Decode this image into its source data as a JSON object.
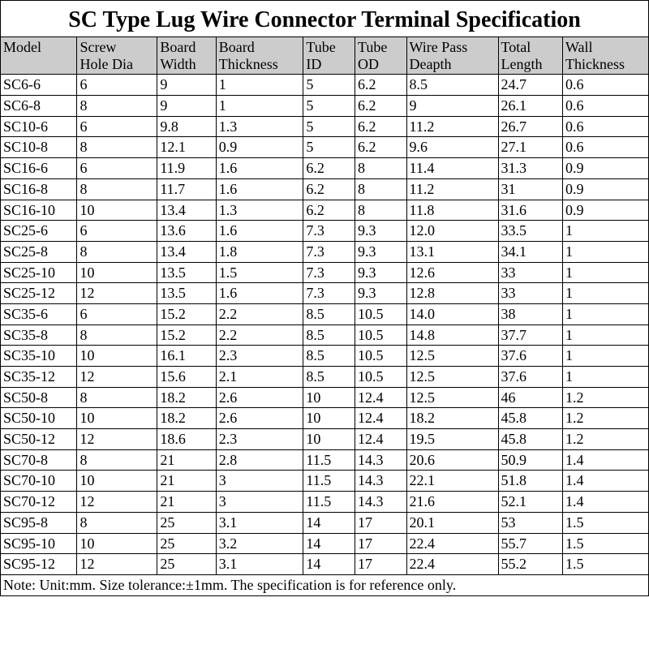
{
  "title": "SC Type Lug Wire Connector Terminal Specification",
  "note": "Note: Unit:mm. Size tolerance:±1mm. The specification is for reference only.",
  "table": {
    "columns": [
      {
        "l1": "Model",
        "l2": ""
      },
      {
        "l1": "Screw",
        "l2": "Hole Dia"
      },
      {
        "l1": "Board",
        "l2": "Width"
      },
      {
        "l1": "Board",
        "l2": "Thickness"
      },
      {
        "l1": "Tube",
        "l2": "ID"
      },
      {
        "l1": "Tube",
        "l2": "OD"
      },
      {
        "l1": "Wire Pass",
        "l2": "Deapth"
      },
      {
        "l1": "Total",
        "l2": "Length"
      },
      {
        "l1": "Wall",
        "l2": "Thickness"
      }
    ],
    "rows": [
      [
        "SC6-6",
        "6",
        "9",
        "1",
        "5",
        "6.2",
        "8.5",
        "24.7",
        "0.6"
      ],
      [
        "SC6-8",
        "8",
        "9",
        "1",
        "5",
        "6.2",
        "9",
        "26.1",
        "0.6"
      ],
      [
        "SC10-6",
        "6",
        "9.8",
        "1.3",
        "5",
        "6.2",
        "11.2",
        "26.7",
        "0.6"
      ],
      [
        "SC10-8",
        "8",
        "12.1",
        "0.9",
        "5",
        "6.2",
        "9.6",
        "27.1",
        "0.6"
      ],
      [
        "SC16-6",
        "6",
        "11.9",
        "1.6",
        "6.2",
        "8",
        "11.4",
        "31.3",
        "0.9"
      ],
      [
        "SC16-8",
        "8",
        "11.7",
        "1.6",
        "6.2",
        "8",
        "11.2",
        "31",
        "0.9"
      ],
      [
        "SC16-10",
        "10",
        "13.4",
        "1.3",
        "6.2",
        "8",
        "11.8",
        "31.6",
        "0.9"
      ],
      [
        "SC25-6",
        "6",
        "13.6",
        "1.6",
        "7.3",
        "9.3",
        "12.0",
        "33.5",
        "1"
      ],
      [
        "SC25-8",
        "8",
        "13.4",
        "1.8",
        "7.3",
        "9.3",
        "13.1",
        "34.1",
        "1"
      ],
      [
        "SC25-10",
        "10",
        "13.5",
        "1.5",
        "7.3",
        "9.3",
        "12.6",
        "33",
        "1"
      ],
      [
        "SC25-12",
        "12",
        "13.5",
        "1.6",
        "7.3",
        "9.3",
        "12.8",
        "33",
        "1"
      ],
      [
        "SC35-6",
        "6",
        "15.2",
        "2.2",
        "8.5",
        "10.5",
        "14.0",
        "38",
        "1"
      ],
      [
        "SC35-8",
        "8",
        "15.2",
        "2.2",
        "8.5",
        "10.5",
        "14.8",
        "37.7",
        "1"
      ],
      [
        "SC35-10",
        "10",
        "16.1",
        "2.3",
        "8.5",
        "10.5",
        "12.5",
        "37.6",
        "1"
      ],
      [
        "SC35-12",
        "12",
        "15.6",
        "2.1",
        "8.5",
        "10.5",
        "12.5",
        "37.6",
        "1"
      ],
      [
        "SC50-8",
        "8",
        "18.2",
        "2.6",
        "10",
        "12.4",
        "12.5",
        "46",
        "1.2"
      ],
      [
        "SC50-10",
        "10",
        "18.2",
        "2.6",
        "10",
        "12.4",
        "18.2",
        "45.8",
        "1.2"
      ],
      [
        "SC50-12",
        "12",
        "18.6",
        "2.3",
        "10",
        "12.4",
        "19.5",
        "45.8",
        "1.2"
      ],
      [
        "SC70-8",
        "8",
        "21",
        "2.8",
        "11.5",
        "14.3",
        "20.6",
        "50.9",
        "1.4"
      ],
      [
        "SC70-10",
        "10",
        "21",
        "3",
        "11.5",
        "14.3",
        "22.1",
        "51.8",
        "1.4"
      ],
      [
        "SC70-12",
        "12",
        "21",
        "3",
        "11.5",
        "14.3",
        "21.6",
        "52.1",
        "1.4"
      ],
      [
        "SC95-8",
        "8",
        "25",
        "3.1",
        "14",
        "17",
        "20.1",
        "53",
        "1.5"
      ],
      [
        "SC95-10",
        "10",
        "25",
        "3.2",
        "14",
        "17",
        "22.4",
        "55.7",
        "1.5"
      ],
      [
        "SC95-12",
        "12",
        "25",
        "3.1",
        "14",
        "17",
        "22.4",
        "55.2",
        "1.5"
      ]
    ]
  },
  "style": {
    "header_bg": "#cccccc",
    "border_color": "#000000",
    "font_family": "Times New Roman",
    "title_fontsize": 28,
    "cell_fontsize": 18,
    "col_widths_pct": [
      10.7,
      11.2,
      8.2,
      12.2,
      7.2,
      7.2,
      12.8,
      9.0,
      12.0
    ]
  }
}
